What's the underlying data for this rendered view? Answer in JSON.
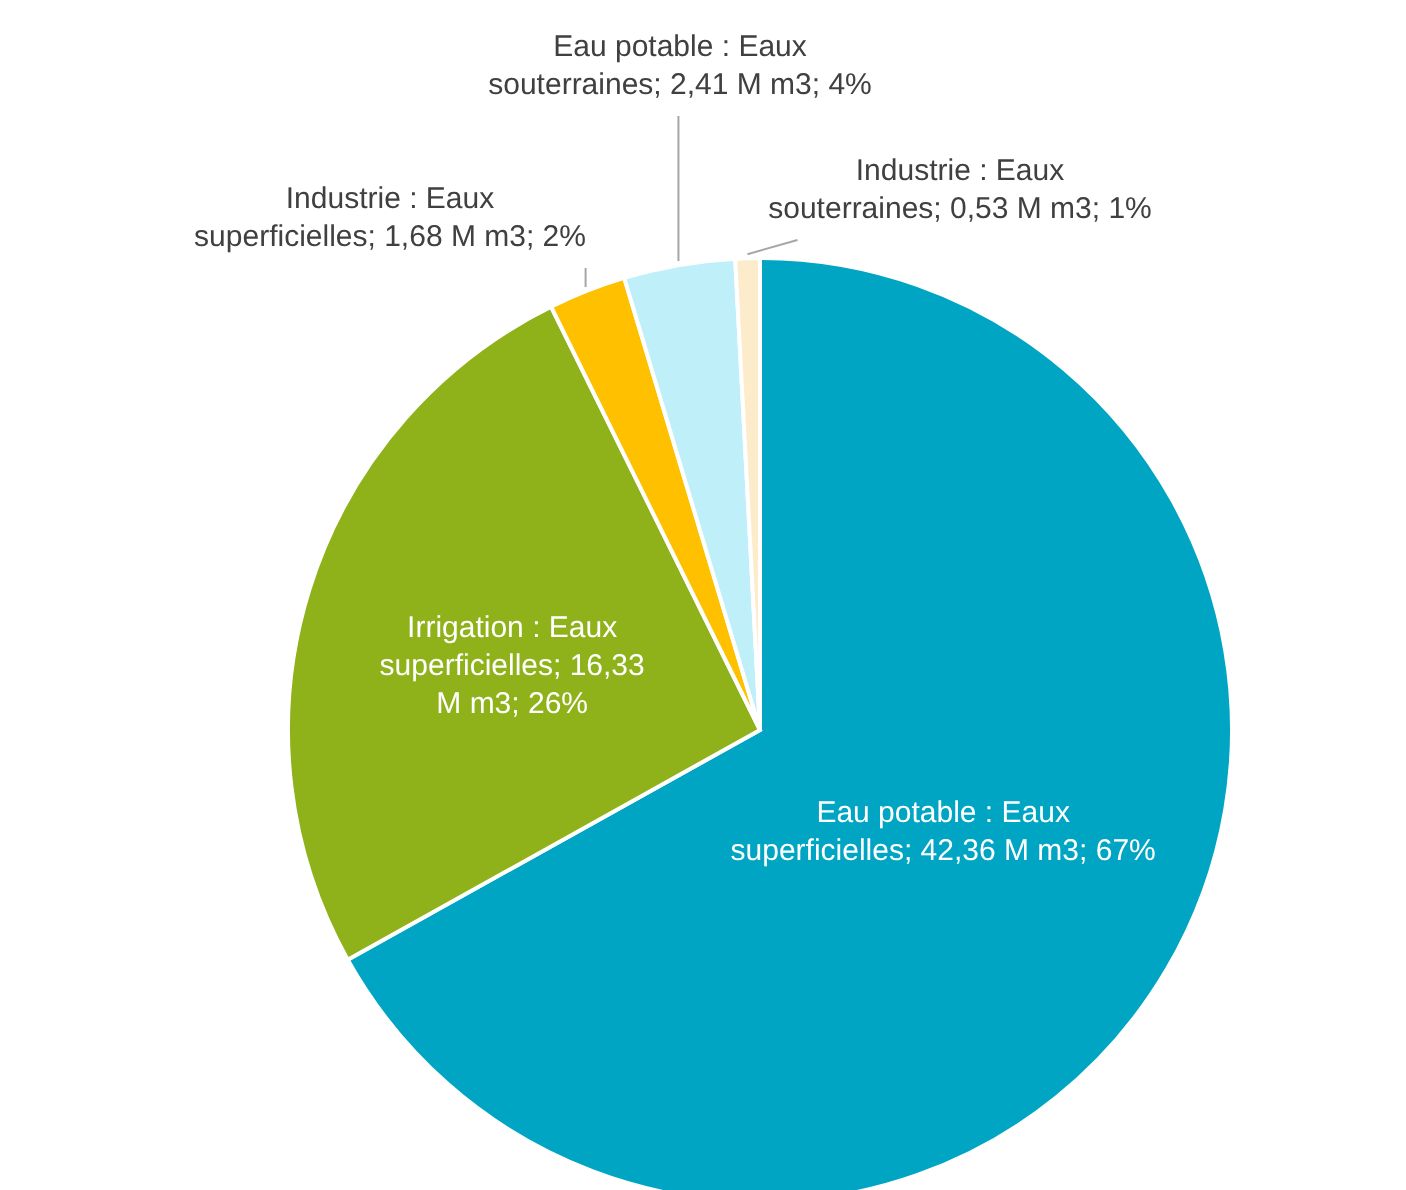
{
  "chart_data": {
    "type": "pie",
    "categories": [
      "Eau potable : Eaux superficielles",
      "Irrigation : Eaux superficielles",
      "Industrie : Eaux superficielles",
      "Eau potable : Eaux souterraines",
      "Industrie : Eaux souterraines"
    ],
    "values": [
      42.36,
      16.33,
      1.68,
      2.41,
      0.53
    ],
    "value_labels": [
      "42,36 M m3; 67%",
      "16,33 M m3; 26%",
      "1,68 M m3; 2%",
      "2,41 M m3; 4%",
      "0,53 M m3; 1%"
    ],
    "colors": [
      "#00a5c3",
      "#8fb21b",
      "#ffc000",
      "#bff0fa",
      "#fdeccc"
    ]
  }
}
